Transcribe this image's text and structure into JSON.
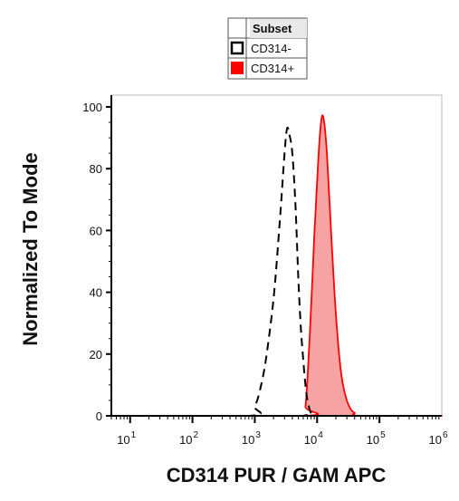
{
  "chart_data": {
    "type": "area",
    "xlabel": "CD314 PUR / GAM APC",
    "ylabel": "Normalized To Mode",
    "xscale": "log",
    "xlim": [
      5,
      1000000
    ],
    "ylim": [
      0,
      100
    ],
    "x_ticks": [
      {
        "value": 10,
        "base": "10",
        "exp": "1"
      },
      {
        "value": 100,
        "base": "10",
        "exp": "2"
      },
      {
        "value": 1000,
        "base": "10",
        "exp": "3"
      },
      {
        "value": 10000,
        "base": "10",
        "exp": "4"
      },
      {
        "value": 100000,
        "base": "10",
        "exp": "5"
      },
      {
        "value": 1000000,
        "base": "10",
        "exp": "6"
      }
    ],
    "y_ticks": [
      0,
      20,
      40,
      60,
      80,
      100
    ],
    "grid": false,
    "legend": {
      "position": "top-center",
      "header": "Subset",
      "entries": [
        {
          "label": "CD314-",
          "style": "outline",
          "color": "#000000"
        },
        {
          "label": "CD314+",
          "style": "filled",
          "color": "#ff0000"
        }
      ]
    },
    "series": [
      {
        "name": "CD314-",
        "style": "dashed",
        "color": "#000000",
        "x": [
          5,
          800,
          1000,
          1200,
          1500,
          2000,
          2500,
          3000,
          3300,
          3600,
          4000,
          4500,
          5000,
          5500,
          6000,
          6500,
          7000,
          7600,
          8200,
          9000,
          1000000
        ],
        "y": [
          0,
          0,
          3,
          8,
          18,
          38,
          62,
          85,
          93,
          91,
          85,
          68,
          44,
          28,
          18,
          10,
          5,
          2,
          0.5,
          0,
          0
        ]
      },
      {
        "name": "CD314+",
        "style": "filled",
        "color": "#ff0000",
        "fill": "#f7a3a3",
        "x": [
          5,
          6000,
          6500,
          7000,
          8000,
          9000,
          10000,
          11000,
          12000,
          13000,
          14000,
          15000,
          16500,
          18000,
          20000,
          23000,
          26000,
          30000,
          35000,
          40000,
          50000,
          1000000
        ],
        "y": [
          0,
          0,
          3,
          12,
          35,
          58,
          76,
          90,
          97,
          95,
          88,
          78,
          62,
          48,
          33,
          18,
          10,
          5,
          2,
          1,
          0,
          0
        ]
      }
    ]
  }
}
